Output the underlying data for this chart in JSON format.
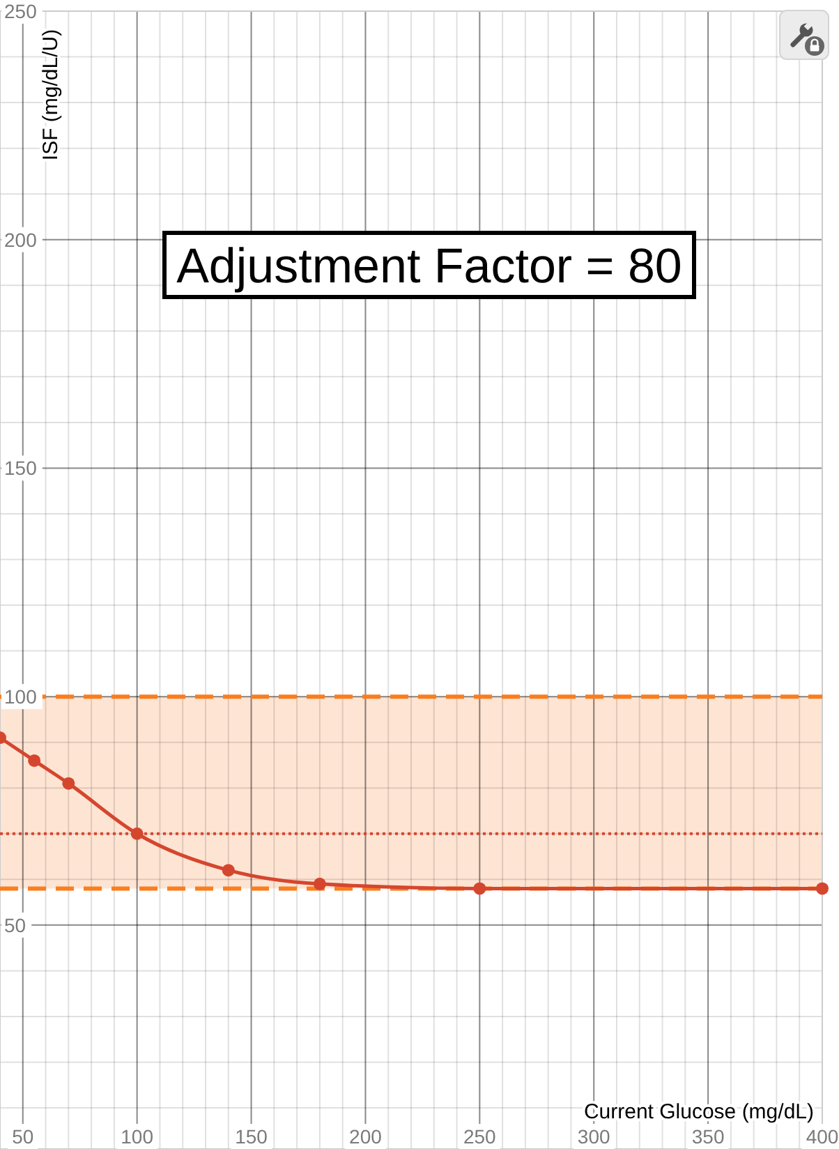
{
  "chart_data": {
    "type": "line",
    "annotations": [
      "Adjustment Factor = 80"
    ],
    "xlabel": "Current Glucose (mg/dL)",
    "ylabel": "ISF (mg/dL/U)",
    "x": [
      40,
      55,
      70,
      100,
      140,
      180,
      250,
      400
    ],
    "series": [
      {
        "color": "#d5462f",
        "values": [
          91,
          86,
          81,
          70,
          62,
          59,
          58,
          58
        ]
      }
    ],
    "xlim": [
      40,
      400
    ],
    "ylim": [
      1,
      250
    ],
    "xticks": [
      50,
      100,
      150,
      200,
      250,
      300,
      350,
      400
    ],
    "yticks": [
      50,
      100,
      150,
      200,
      250
    ],
    "grid": true,
    "marker": "circle",
    "line_style": "solid",
    "ref_lines": [
      {
        "axis": "y",
        "value": 100,
        "color": "#fa7e1e",
        "line_style": "dashed"
      },
      {
        "axis": "y",
        "value": 58,
        "color": "#fa7e1e",
        "line_style": "dashed"
      },
      {
        "axis": "y",
        "value": 70,
        "color": "#d5462f",
        "line_style": "dotted"
      }
    ],
    "bands": [
      {
        "axis": "y",
        "from": 58,
        "to": 100,
        "color": "#fee4d3"
      }
    ]
  }
}
